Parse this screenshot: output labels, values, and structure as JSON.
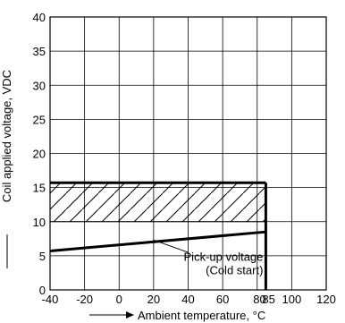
{
  "chart_data": {
    "type": "line",
    "title": "",
    "xlabel": "Ambient temperature, °C",
    "ylabel": "Coil applied voltage, VDC",
    "xlim": [
      -40,
      120
    ],
    "ylim": [
      0,
      40
    ],
    "x_ticks": [
      -40,
      -20,
      0,
      20,
      40,
      60,
      80,
      85,
      100,
      120
    ],
    "x_tick_labels": [
      "-40",
      "-20",
      "0",
      "20",
      "40",
      "60",
      "80",
      "85",
      "100",
      "120"
    ],
    "y_ticks": [
      0,
      5,
      10,
      15,
      20,
      25,
      30,
      35,
      40
    ],
    "y_tick_labels": [
      "0",
      "5",
      "10",
      "15",
      "20",
      "25",
      "30",
      "35",
      "40"
    ],
    "grid": true,
    "series": [
      {
        "x": [
          -40,
          85
        ],
        "y": [
          5.7,
          8.5
        ]
      }
    ],
    "operating_region": {
      "x": [
        -40,
        85
      ],
      "y_max": 15.7
    },
    "hatched_region": {
      "x": [
        -40,
        85
      ],
      "y": [
        10,
        15.7
      ]
    },
    "annotations": [
      {
        "text": "Pick-up voltage",
        "x": 85,
        "y": 4.8
      },
      {
        "text": "(Cold start)",
        "x": 85,
        "y": 2.8
      }
    ]
  }
}
